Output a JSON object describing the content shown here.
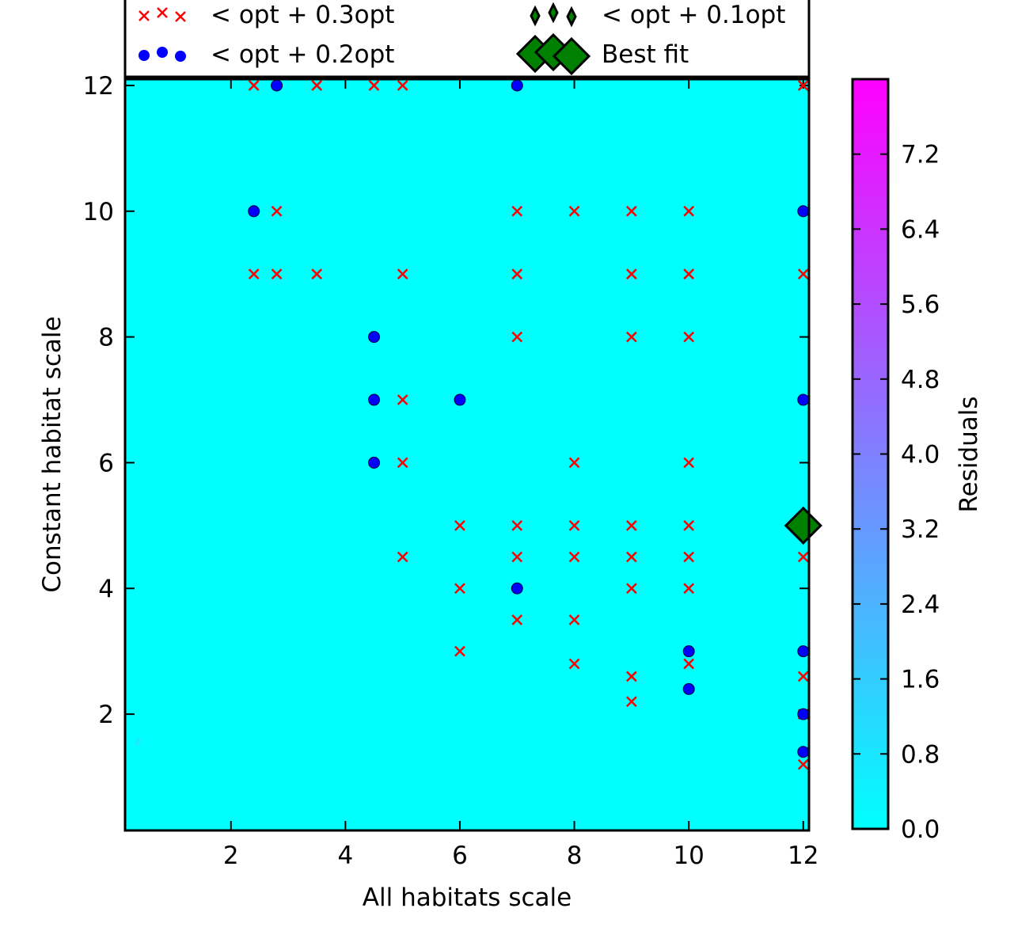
{
  "chart_data": {
    "type": "scatter",
    "xlabel": "All habitats scale",
    "ylabel": "Constant habitat scale",
    "xlim": [
      0.15,
      12.1
    ],
    "ylim": [
      0.15,
      12.1
    ],
    "x_ticks": [
      2,
      4,
      6,
      8,
      10,
      12
    ],
    "y_ticks": [
      2,
      4,
      6,
      8,
      10,
      12
    ],
    "background": "heatmap of residuals, nearly uniform at 0.0",
    "colorbar": {
      "label": "Residuals",
      "min": 0.0,
      "max": 8.0,
      "ticks": [
        "0.0",
        "0.8",
        "1.6",
        "2.4",
        "3.2",
        "4.0",
        "4.8",
        "5.6",
        "6.4",
        "7.2"
      ],
      "colormap": "cool",
      "color_low": "#00ffff",
      "color_high": "#ff00ff"
    },
    "legend": {
      "placement": "top",
      "entries": [
        "< opt + 0.3opt",
        "< opt + 0.1opt",
        "< opt + 0.2opt",
        "Best fit"
      ]
    },
    "series": [
      {
        "name": "< opt + 0.3opt",
        "marker": "x",
        "color": "#ff0000",
        "points": [
          [
            2.4,
            12
          ],
          [
            3.5,
            12
          ],
          [
            4.5,
            12
          ],
          [
            5,
            12
          ],
          [
            12,
            12
          ],
          [
            2.8,
            10
          ],
          [
            7,
            10
          ],
          [
            8,
            10
          ],
          [
            9,
            10
          ],
          [
            10,
            10
          ],
          [
            2.4,
            9
          ],
          [
            2.8,
            9
          ],
          [
            3.5,
            9
          ],
          [
            5,
            9
          ],
          [
            7,
            9
          ],
          [
            9,
            9
          ],
          [
            10,
            9
          ],
          [
            12,
            9
          ],
          [
            7,
            8
          ],
          [
            9,
            8
          ],
          [
            10,
            8
          ],
          [
            5,
            7
          ],
          [
            5,
            6
          ],
          [
            8,
            6
          ],
          [
            10,
            6
          ],
          [
            6,
            5
          ],
          [
            7,
            5
          ],
          [
            8,
            5
          ],
          [
            9,
            5
          ],
          [
            10,
            5
          ],
          [
            5,
            4.5
          ],
          [
            7,
            4.5
          ],
          [
            8,
            4.5
          ],
          [
            9,
            4.5
          ],
          [
            10,
            4.5
          ],
          [
            12,
            4.5
          ],
          [
            6,
            4
          ],
          [
            9,
            4
          ],
          [
            10,
            4
          ],
          [
            7,
            3.5
          ],
          [
            8,
            3.5
          ],
          [
            6,
            3
          ],
          [
            8,
            2.8
          ],
          [
            10,
            2.8
          ],
          [
            9,
            2.6
          ],
          [
            12,
            2.6
          ],
          [
            9,
            2.2
          ],
          [
            12,
            2
          ],
          [
            12,
            1.2
          ]
        ]
      },
      {
        "name": "< opt + 0.2opt",
        "marker": "o",
        "color": "#0000ff",
        "points": [
          [
            2.8,
            12
          ],
          [
            7,
            12
          ],
          [
            2.4,
            10
          ],
          [
            12,
            10
          ],
          [
            4.5,
            8
          ],
          [
            4.5,
            7
          ],
          [
            6,
            7
          ],
          [
            12,
            7
          ],
          [
            4.5,
            6
          ],
          [
            7,
            4
          ],
          [
            10,
            3
          ],
          [
            12,
            3
          ],
          [
            10,
            2.4
          ],
          [
            12,
            2
          ],
          [
            12,
            1.4
          ]
        ]
      },
      {
        "name": "< opt + 0.1opt",
        "marker": "d",
        "color": "#008000",
        "points": []
      },
      {
        "name": "Best fit",
        "marker": "D",
        "color": "#008000",
        "points": [
          [
            12,
            5
          ]
        ]
      }
    ]
  }
}
